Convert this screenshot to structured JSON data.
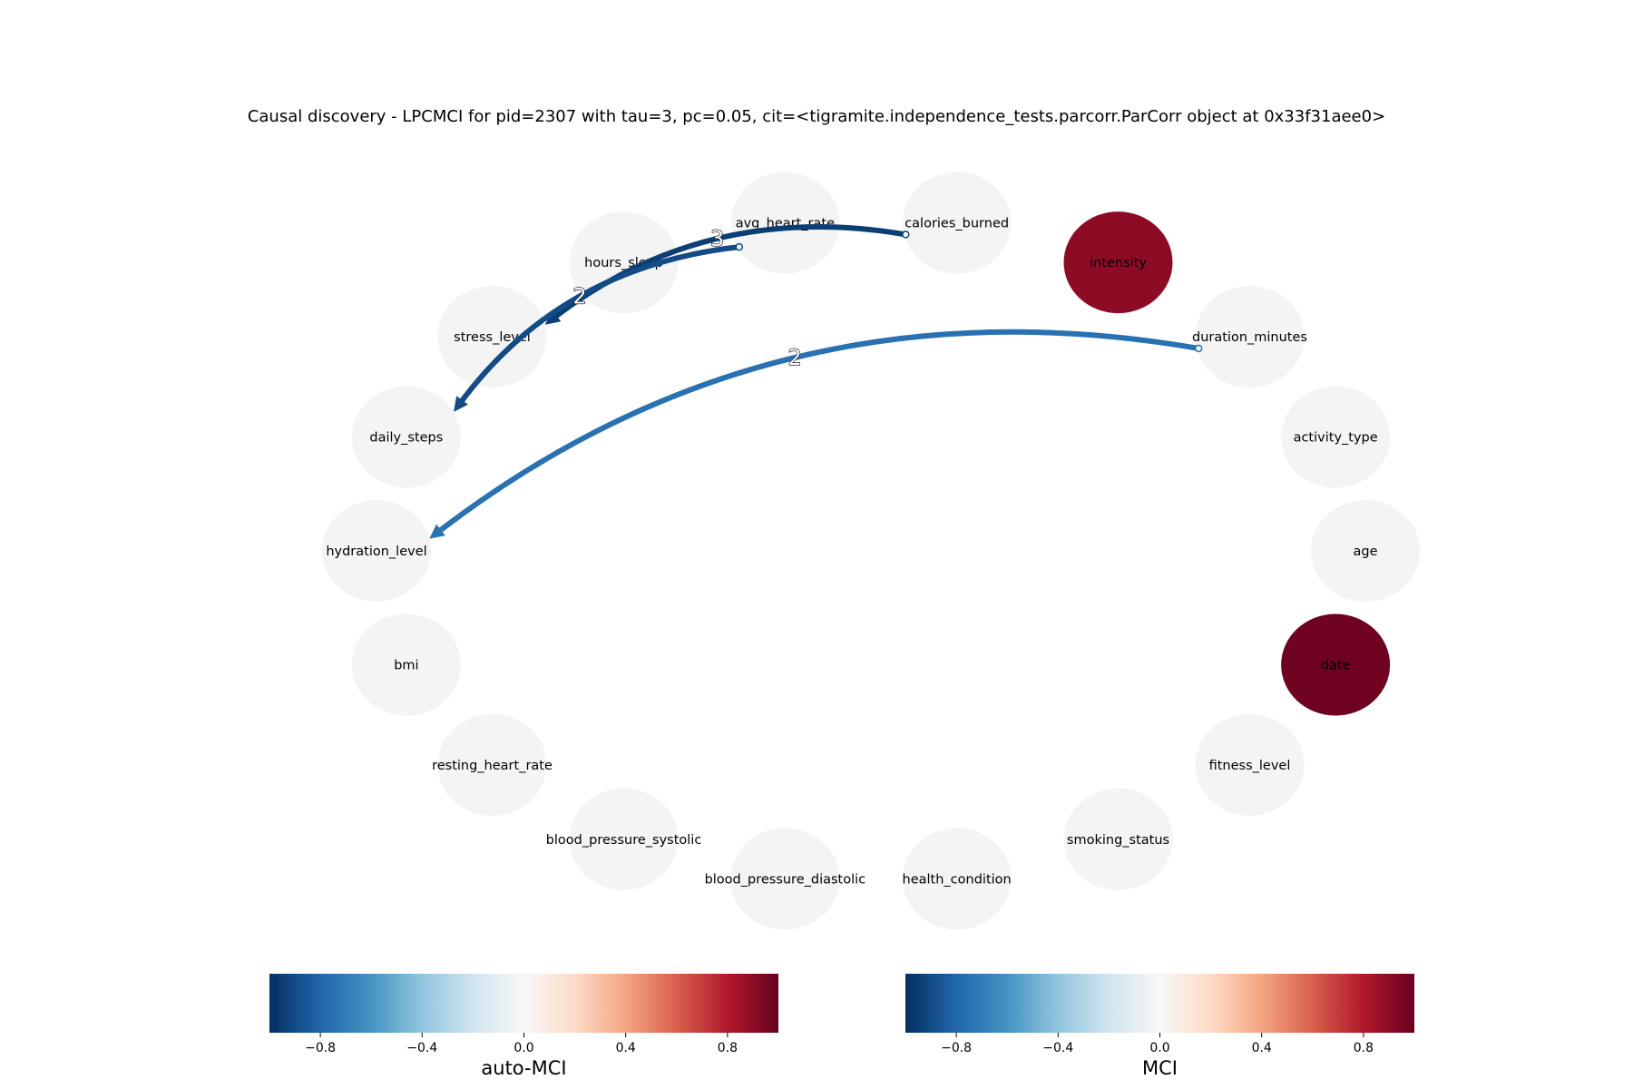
{
  "title": "Causal discovery - LPCMCI for pid=2307 with tau=3, pc=0.05, cit=<tigramite.independence_tests.parcorr.ParCorr object at 0x33f31aee0>",
  "nodes": [
    {
      "id": "calories_burned",
      "label": "calories_burned",
      "auto_mci": 0
    },
    {
      "id": "intensity",
      "label": "intensity",
      "auto_mci": 0.9
    },
    {
      "id": "duration_minutes",
      "label": "duration_minutes",
      "auto_mci": 0
    },
    {
      "id": "activity_type",
      "label": "activity_type",
      "auto_mci": 0
    },
    {
      "id": "age",
      "label": "age",
      "auto_mci": 0
    },
    {
      "id": "date",
      "label": "date",
      "auto_mci": 0.98
    },
    {
      "id": "fitness_level",
      "label": "fitness_level",
      "auto_mci": 0
    },
    {
      "id": "smoking_status",
      "label": "smoking_status",
      "auto_mci": 0
    },
    {
      "id": "health_condition",
      "label": "health_condition",
      "auto_mci": 0
    },
    {
      "id": "blood_pressure_diastolic",
      "label": "blood_pressure_diastolic",
      "auto_mci": 0
    },
    {
      "id": "blood_pressure_systolic",
      "label": "blood_pressure_systolic",
      "auto_mci": 0
    },
    {
      "id": "resting_heart_rate",
      "label": "resting_heart_rate",
      "auto_mci": 0
    },
    {
      "id": "bmi",
      "label": "bmi",
      "auto_mci": 0
    },
    {
      "id": "hydration_level",
      "label": "hydration_level",
      "auto_mci": 0
    },
    {
      "id": "daily_steps",
      "label": "daily_steps",
      "auto_mci": 0
    },
    {
      "id": "stress_level",
      "label": "stress_level",
      "auto_mci": 0
    },
    {
      "id": "hours_sleep",
      "label": "hours_sleep",
      "auto_mci": 0
    },
    {
      "id": "avg_heart_rate",
      "label": "avg_heart_rate",
      "auto_mci": 0
    }
  ],
  "edges": [
    {
      "from": "calories_burned",
      "to": "stress_level",
      "lag_label": "3",
      "mci": -0.95
    },
    {
      "from": "avg_heart_rate",
      "to": "daily_steps",
      "lag_label": "2",
      "mci": -0.9
    },
    {
      "from": "duration_minutes",
      "to": "hydration_level",
      "lag_label": "2",
      "mci": -0.75
    }
  ],
  "colorbars": [
    {
      "label": "auto-MCI",
      "ticks": [
        "−0.8",
        "−0.4",
        "0.0",
        "0.4",
        "0.8"
      ],
      "range": [
        -1,
        1
      ]
    },
    {
      "label": "MCI",
      "ticks": [
        "−0.8",
        "−0.4",
        "0.0",
        "0.4",
        "0.8"
      ],
      "range": [
        -1,
        1
      ]
    }
  ]
}
